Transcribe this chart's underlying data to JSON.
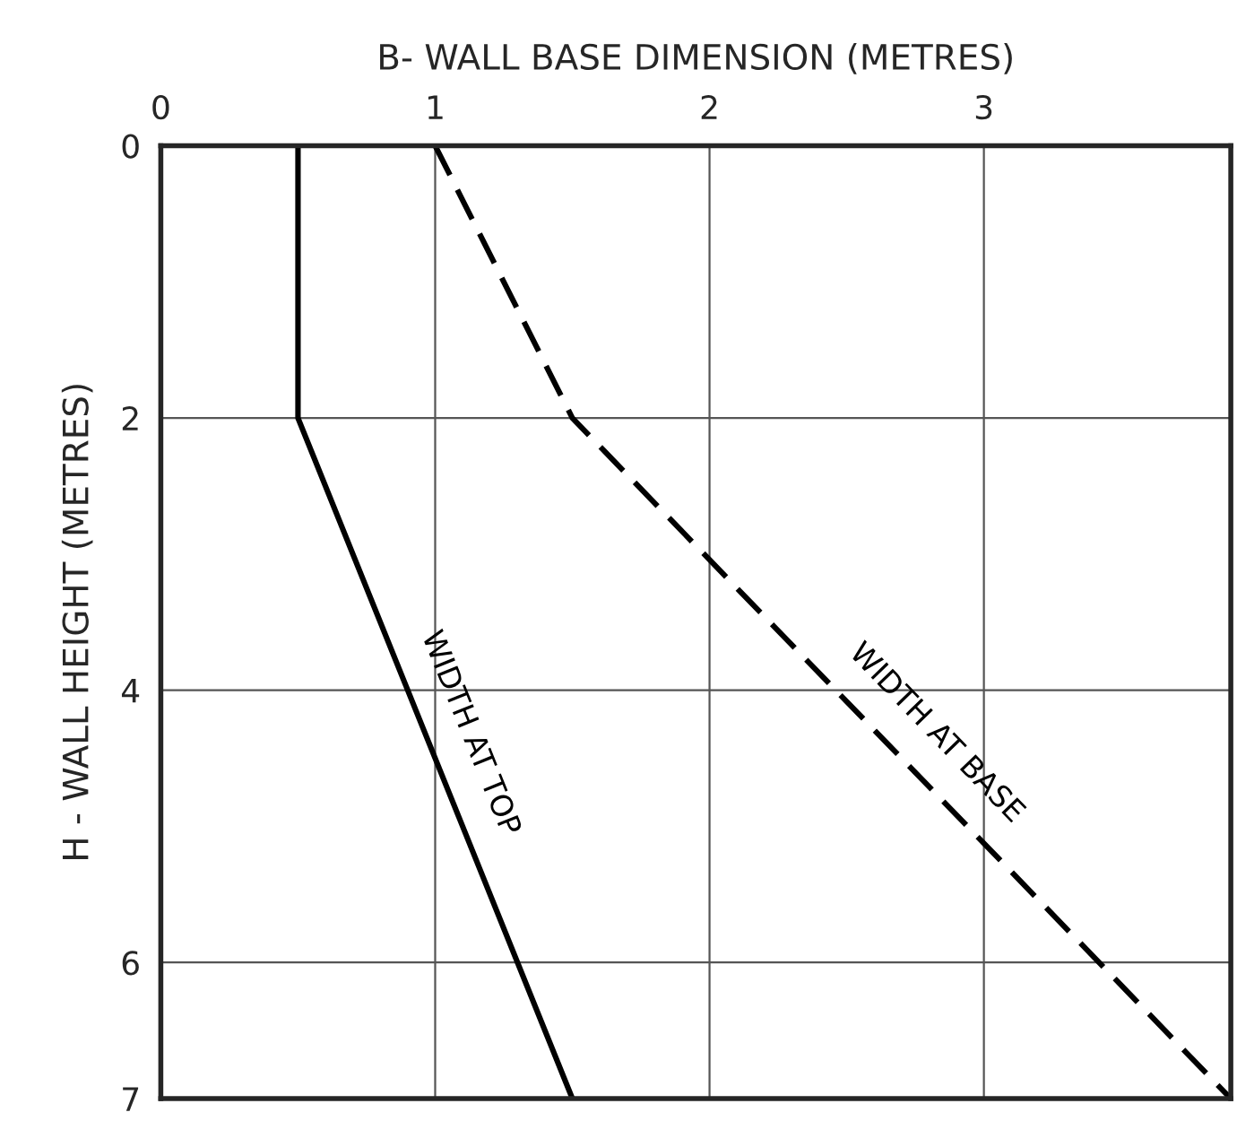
{
  "chart_data": {
    "type": "line",
    "xlabel": "B- WALL BASE DIMENSION (METRES)",
    "ylabel": "H - WALL HEIGHT (METRES)",
    "xlim": [
      0,
      3.9
    ],
    "xticks": [
      0,
      1,
      2,
      3
    ],
    "ylim": [
      7,
      0
    ],
    "yticks": [
      0,
      2,
      4,
      6,
      7
    ],
    "grid": true,
    "marker": "none",
    "series": [
      {
        "name": "WIDTH AT TOP",
        "color": "#000000",
        "line_style": "solid",
        "x": [
          0.5,
          0.5,
          1.5
        ],
        "values": [
          0,
          2,
          7
        ]
      },
      {
        "name": "WIDTH AT BASE",
        "color": "#000000",
        "line_style": "dashed",
        "x": [
          1,
          1.5,
          3.9
        ],
        "values": [
          0,
          2,
          7
        ]
      }
    ]
  }
}
